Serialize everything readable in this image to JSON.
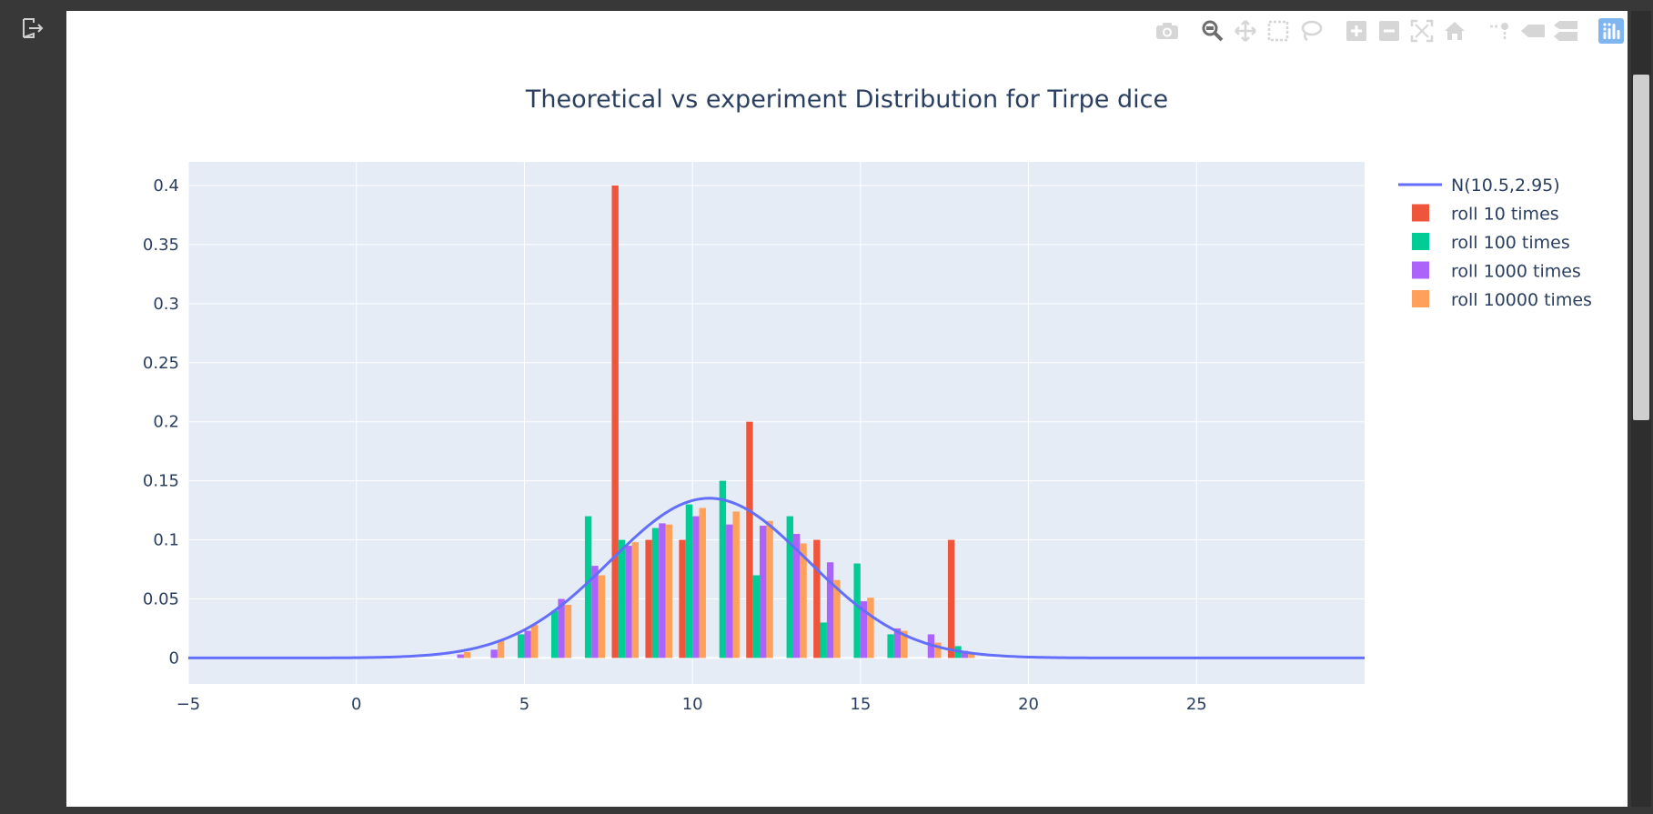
{
  "toolbar": {
    "buttons": [
      {
        "name": "camera-icon"
      },
      {
        "name": "zoom-icon"
      },
      {
        "name": "pan-icon"
      },
      {
        "name": "box-select-icon"
      },
      {
        "name": "lasso-select-icon"
      },
      {
        "name": "zoom-in-icon"
      },
      {
        "name": "zoom-out-icon"
      },
      {
        "name": "autoscale-icon"
      },
      {
        "name": "home-icon"
      },
      {
        "name": "spike-lines-icon"
      },
      {
        "name": "hover-closest-icon"
      },
      {
        "name": "hover-compare-icon"
      },
      {
        "name": "plotly-logo-icon"
      }
    ]
  },
  "chart_data": {
    "type": "bar",
    "title": "Theoretical vs experiment Distribution for Tirpe dice",
    "xlim": [
      -5,
      30
    ],
    "ylim": [
      -0.022,
      0.42
    ],
    "x_ticks": [
      -5,
      0,
      5,
      10,
      15,
      20,
      25
    ],
    "x_tick_labels": [
      "−5",
      "0",
      "5",
      "10",
      "15",
      "20",
      "25"
    ],
    "y_ticks": [
      0,
      0.05,
      0.1,
      0.15,
      0.2,
      0.25,
      0.3,
      0.35,
      0.4
    ],
    "y_tick_labels": [
      "0",
      "0.05",
      "0.1",
      "0.15",
      "0.2",
      "0.25",
      "0.3",
      "0.35",
      "0.4"
    ],
    "grid": true,
    "legend_position": "right",
    "colors": {
      "plot_bg": "#e5ecf6",
      "line": "#636efa",
      "roll10": "#ef553b",
      "roll100": "#00cc96",
      "roll1000": "#ab63fa",
      "roll10000": "#ffa15a"
    },
    "line": {
      "name": "N(10.5,2.95)",
      "mean": 10.5,
      "sd": 2.95
    },
    "categories": [
      3,
      4,
      5,
      6,
      7,
      8,
      9,
      10,
      11,
      12,
      13,
      14,
      15,
      16,
      17,
      18
    ],
    "series": [
      {
        "name": "roll 10 times",
        "values": [
          0,
          0,
          0,
          0,
          0,
          0.4,
          0.1,
          0.1,
          0,
          0.2,
          0,
          0.1,
          0,
          0,
          0,
          0.1
        ]
      },
      {
        "name": "roll 100 times",
        "values": [
          0,
          0,
          0.02,
          0.04,
          0.12,
          0.1,
          0.11,
          0.13,
          0.15,
          0.07,
          0.12,
          0.03,
          0.08,
          0.02,
          0,
          0.01
        ]
      },
      {
        "name": "roll 1000 times",
        "values": [
          0.003,
          0.007,
          0.023,
          0.05,
          0.078,
          0.095,
          0.114,
          0.12,
          0.113,
          0.112,
          0.105,
          0.081,
          0.048,
          0.025,
          0.02,
          0.006
        ]
      },
      {
        "name": "roll 10000 times",
        "values": [
          0.005,
          0.015,
          0.028,
          0.045,
          0.07,
          0.098,
          0.113,
          0.127,
          0.124,
          0.116,
          0.097,
          0.066,
          0.051,
          0.023,
          0.013,
          0.004
        ]
      }
    ]
  }
}
